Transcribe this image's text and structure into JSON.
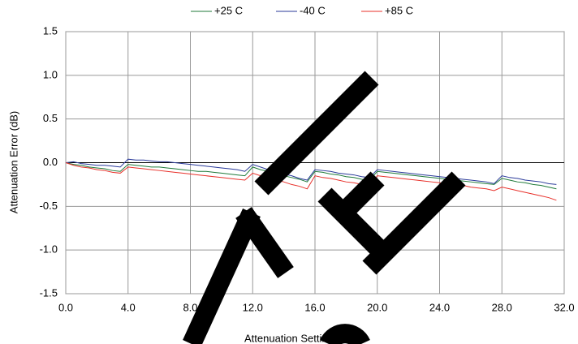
{
  "chart_data": {
    "type": "line",
    "x_label": "Attenuation Setting (dB)",
    "y_label": "Attenuation Error (dB)",
    "x": [
      0,
      0.5,
      1,
      1.5,
      2,
      2.5,
      3,
      3.5,
      4,
      4.5,
      5,
      5.5,
      6,
      6.5,
      7,
      7.5,
      8,
      8.5,
      9,
      9.5,
      10,
      10.5,
      11,
      11.5,
      12,
      12.5,
      13,
      13.5,
      14,
      14.5,
      15,
      15.5,
      16,
      16.5,
      17,
      17.5,
      18,
      18.5,
      19,
      19.5,
      20,
      20.5,
      21,
      21.5,
      22,
      22.5,
      23,
      23.5,
      24,
      24.5,
      25,
      25.5,
      26,
      26.5,
      27,
      27.5,
      28,
      28.5,
      29,
      29.5,
      30,
      30.5,
      31,
      31.5
    ],
    "series": [
      {
        "name": "+25 C",
        "color": "#1f7a3a",
        "values": [
          0,
          -0.02,
          -0.03,
          -0.05,
          -0.06,
          -0.07,
          -0.09,
          -0.1,
          -0.02,
          -0.03,
          -0.04,
          -0.05,
          -0.05,
          -0.06,
          -0.07,
          -0.08,
          -0.09,
          -0.1,
          -0.1,
          -0.11,
          -0.12,
          -0.13,
          -0.14,
          -0.15,
          -0.05,
          -0.08,
          -0.1,
          -0.13,
          -0.15,
          -0.17,
          -0.19,
          -0.22,
          -0.1,
          -0.11,
          -0.13,
          -0.14,
          -0.16,
          -0.17,
          -0.19,
          -0.2,
          -0.1,
          -0.11,
          -0.12,
          -0.13,
          -0.14,
          -0.15,
          -0.16,
          -0.17,
          -0.18,
          -0.19,
          -0.2,
          -0.21,
          -0.22,
          -0.23,
          -0.24,
          -0.25,
          -0.18,
          -0.2,
          -0.22,
          -0.23,
          -0.25,
          -0.26,
          -0.28,
          -0.3
        ]
      },
      {
        "name": "-40 C",
        "color": "#2a3a9a",
        "values": [
          0,
          0.01,
          -0.01,
          -0.02,
          -0.03,
          -0.03,
          -0.04,
          -0.05,
          0.04,
          0.03,
          0.03,
          0.02,
          0.01,
          0.01,
          0,
          -0.01,
          -0.02,
          -0.03,
          -0.04,
          -0.05,
          -0.06,
          -0.07,
          -0.08,
          -0.1,
          -0.02,
          -0.05,
          -0.08,
          -0.1,
          -0.13,
          -0.15,
          -0.18,
          -0.2,
          -0.08,
          -0.09,
          -0.1,
          -0.12,
          -0.13,
          -0.14,
          -0.16,
          -0.17,
          -0.08,
          -0.09,
          -0.1,
          -0.11,
          -0.12,
          -0.13,
          -0.14,
          -0.15,
          -0.16,
          -0.17,
          -0.18,
          -0.19,
          -0.2,
          -0.21,
          -0.22,
          -0.24,
          -0.15,
          -0.17,
          -0.18,
          -0.2,
          -0.21,
          -0.22,
          -0.24,
          -0.25
        ]
      },
      {
        "name": "+85 C",
        "color": "#e8302a",
        "values": [
          0,
          -0.03,
          -0.05,
          -0.06,
          -0.08,
          -0.09,
          -0.11,
          -0.12,
          -0.05,
          -0.06,
          -0.07,
          -0.08,
          -0.09,
          -0.1,
          -0.11,
          -0.12,
          -0.13,
          -0.14,
          -0.15,
          -0.16,
          -0.17,
          -0.18,
          -0.19,
          -0.2,
          -0.12,
          -0.15,
          -0.17,
          -0.2,
          -0.22,
          -0.25,
          -0.27,
          -0.3,
          -0.15,
          -0.17,
          -0.18,
          -0.2,
          -0.22,
          -0.23,
          -0.25,
          -0.27,
          -0.15,
          -0.16,
          -0.17,
          -0.18,
          -0.19,
          -0.2,
          -0.21,
          -0.22,
          -0.23,
          -0.24,
          -0.25,
          -0.26,
          -0.28,
          -0.29,
          -0.3,
          -0.32,
          -0.28,
          -0.3,
          -0.32,
          -0.34,
          -0.36,
          -0.38,
          -0.4,
          -0.43
        ]
      }
    ],
    "xlim": [
      0,
      32
    ],
    "ylim": [
      -1.5,
      1.5
    ],
    "xticks": [
      {
        "value": 0,
        "label": "0.0"
      },
      {
        "value": 4,
        "label": "4.0"
      },
      {
        "value": 8,
        "label": "8.0"
      },
      {
        "value": 12,
        "label": "12.0"
      },
      {
        "value": 16,
        "label": "16.0"
      },
      {
        "value": 20,
        "label": "20.0"
      },
      {
        "value": 24,
        "label": "24.0"
      },
      {
        "value": 28,
        "label": "28.0"
      },
      {
        "value": 32,
        "label": "32.0"
      }
    ],
    "yticks": [
      -1.5,
      {
        "value": -1,
        "label": "-1.0"
      },
      -0.5,
      {
        "value": 0,
        "label": "0.0"
      },
      0.5,
      {
        "value": 1,
        "label": "1.0"
      },
      1.5
    ],
    "grid": true,
    "legend": "top"
  }
}
